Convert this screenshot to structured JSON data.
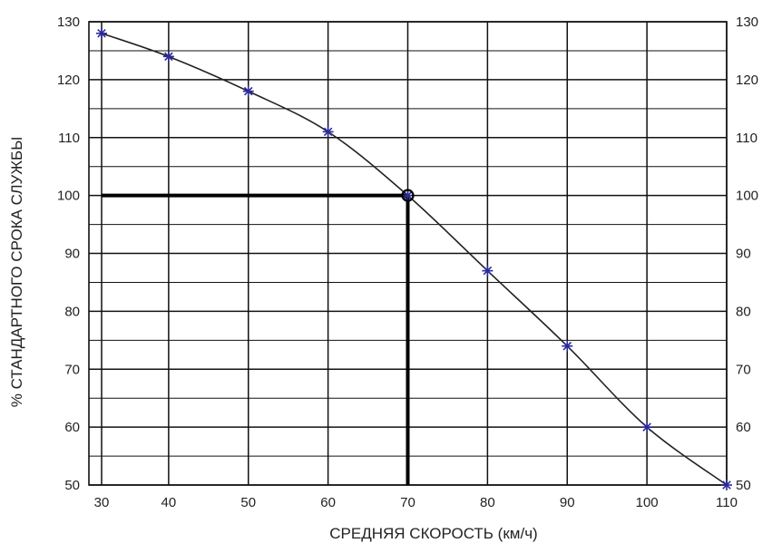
{
  "chart_data": {
    "type": "line",
    "title": "",
    "xlabel": "СРЕДНЯЯ СКОРОСТЬ (км/ч)",
    "ylabel": "% СТАНДАРТНОГО СРОКА СЛУЖБЫ",
    "xlim": [
      30,
      110
    ],
    "ylim": [
      50,
      130
    ],
    "grid": true,
    "legend": "none",
    "x_ticks": [
      30,
      40,
      50,
      60,
      70,
      80,
      90,
      100,
      110
    ],
    "x_tick_labels": [
      "30",
      "40",
      "50",
      "60",
      "70",
      "80",
      "90",
      "100",
      "110"
    ],
    "y_ticks": [
      50,
      60,
      70,
      80,
      90,
      100,
      110,
      120,
      130
    ],
    "y_tick_labels": [
      "50",
      "60",
      "70",
      "80",
      "90",
      "100",
      "110",
      "120",
      "130"
    ],
    "right_axis_tick_labels": [
      "50",
      "60",
      "70",
      "80",
      "90",
      "100",
      "110",
      "120",
      "130"
    ],
    "series": [
      {
        "x": [
          30,
          40,
          50,
          60,
          70,
          80,
          90,
          100,
          110
        ],
        "y": [
          128,
          124,
          118,
          111,
          100,
          87,
          74,
          60,
          50
        ],
        "marker": "star",
        "line_color": "#222222",
        "marker_color": "#2b2b9a"
      }
    ],
    "reference_point": {
      "x": 70,
      "y": 100,
      "marker": "circle"
    },
    "reference_lines": [
      {
        "orientation": "horizontal",
        "value": 100,
        "from_x": 30,
        "to_x": 70
      },
      {
        "orientation": "vertical",
        "value": 70,
        "from_y": 50,
        "to_y": 100
      }
    ]
  }
}
